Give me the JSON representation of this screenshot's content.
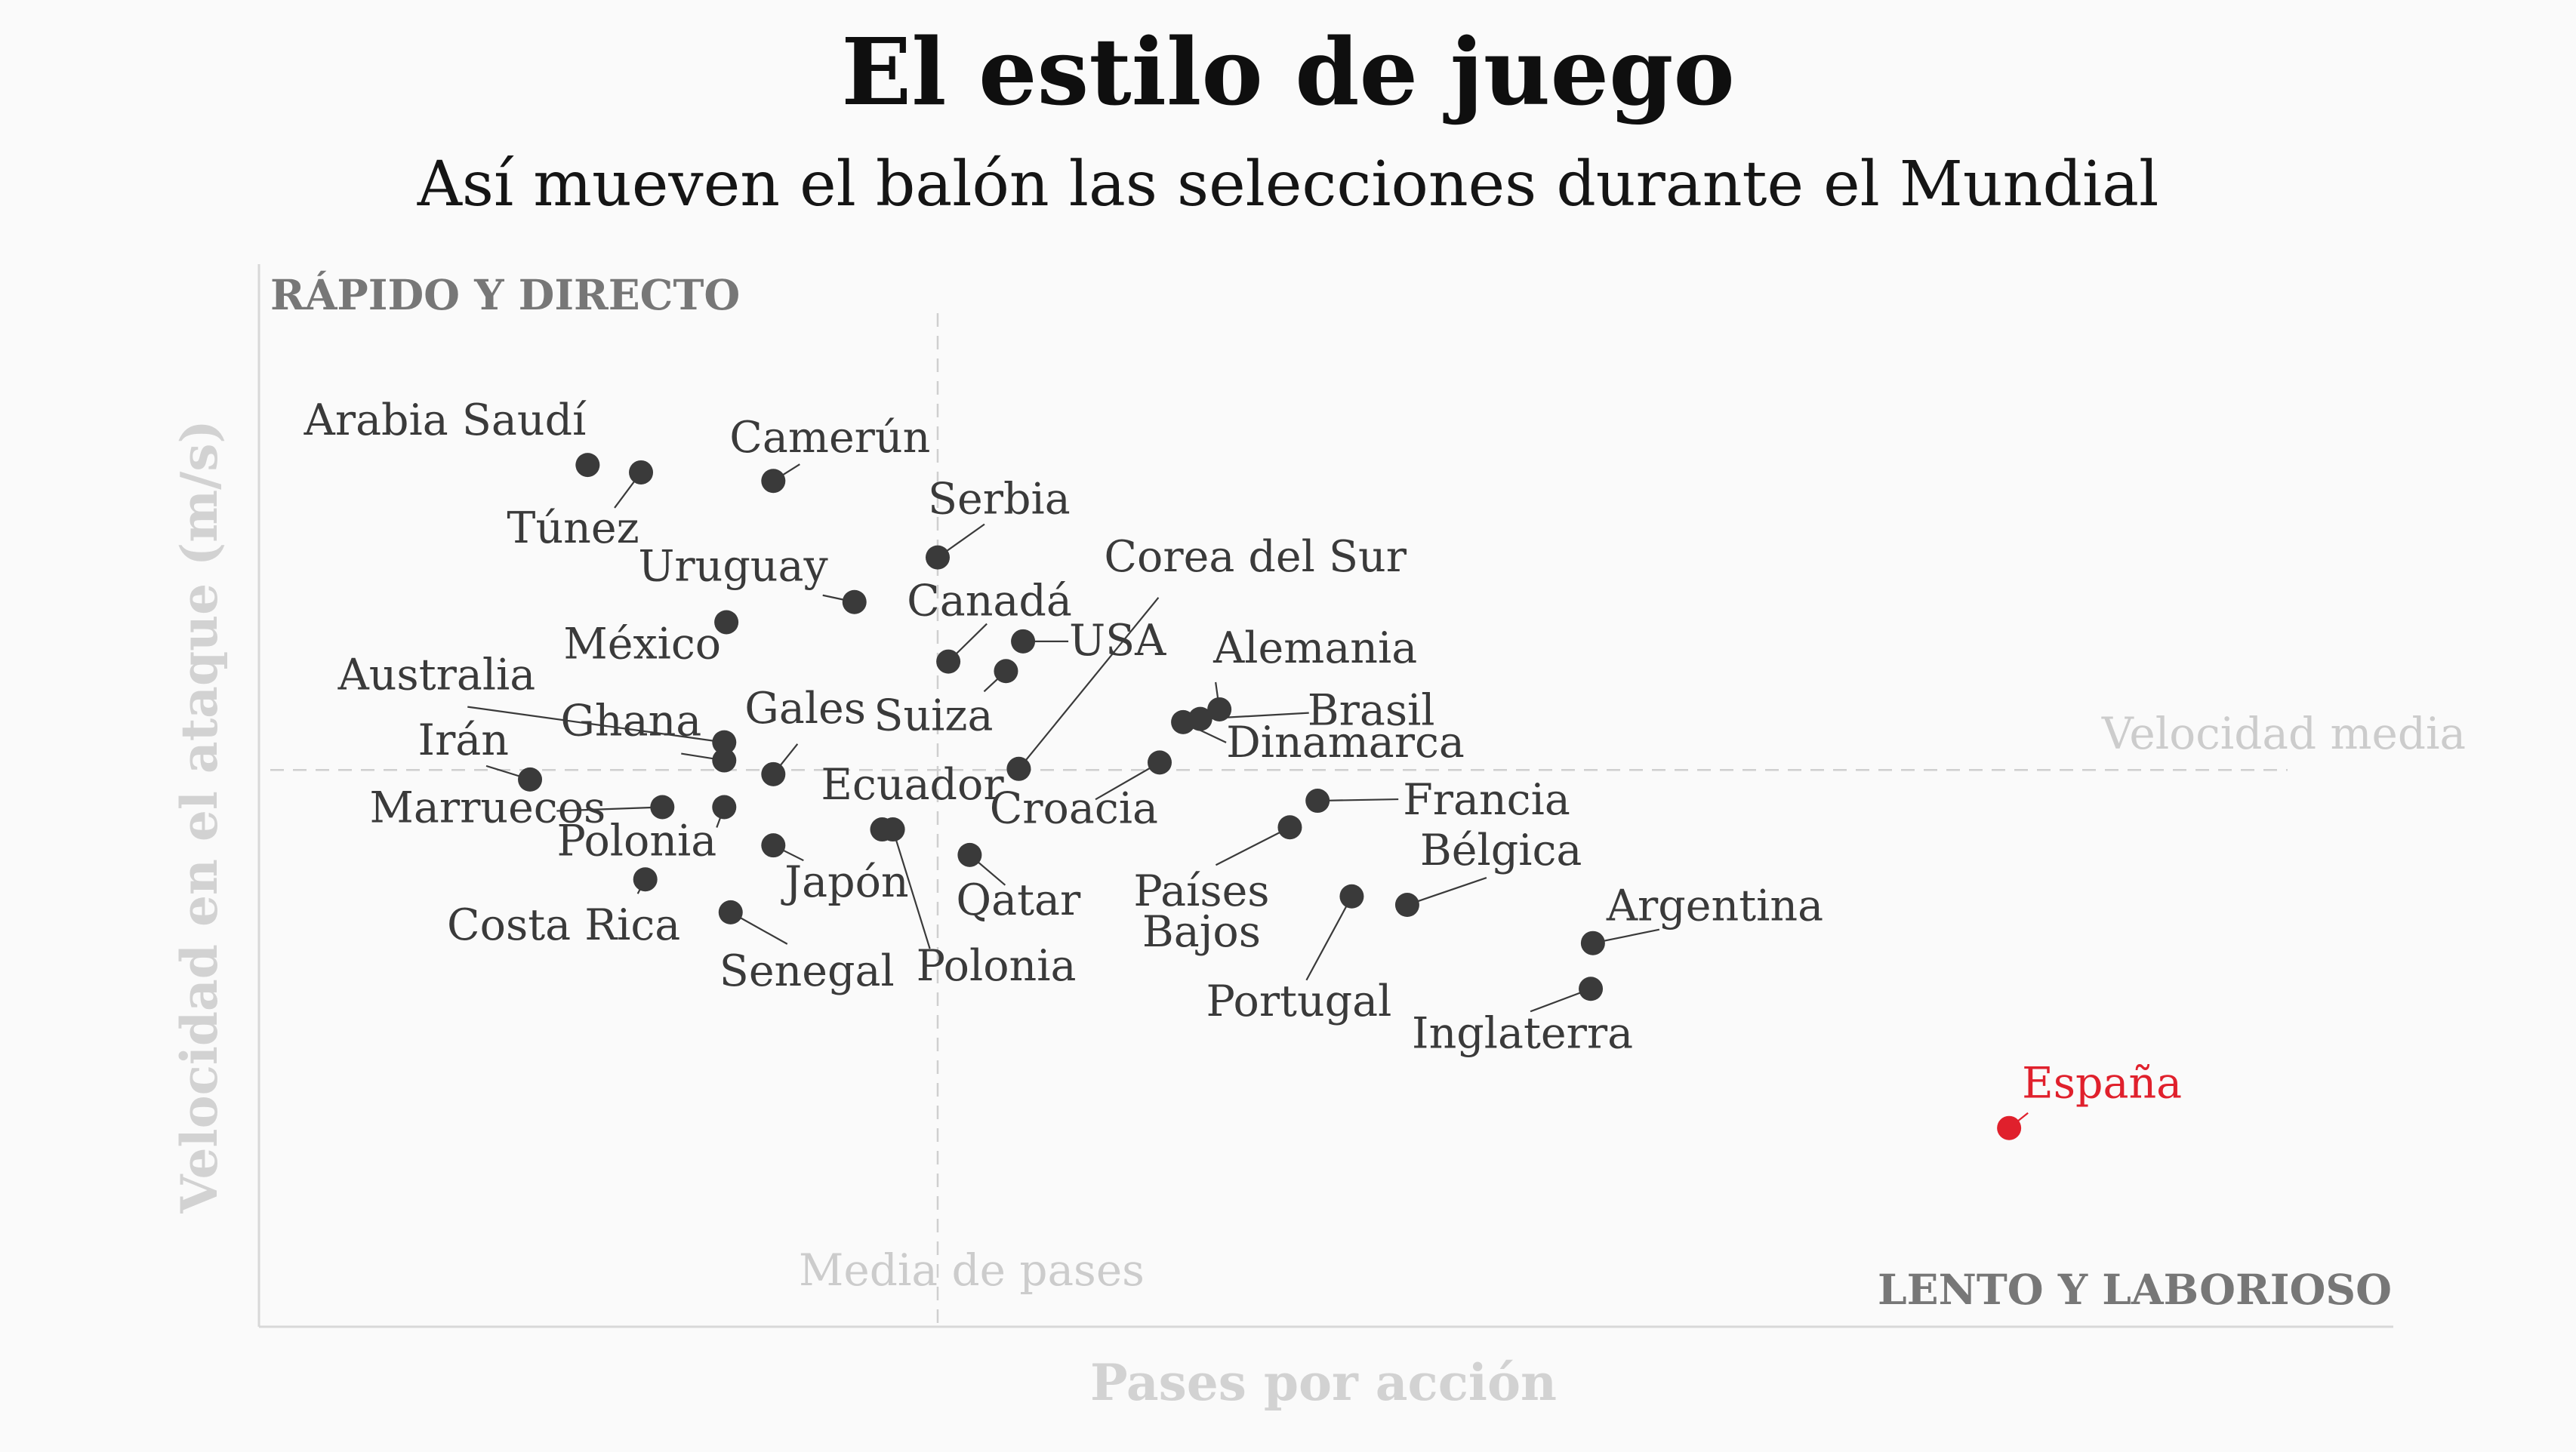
{
  "title": "El estilo de juego",
  "subtitle": "Así mueven el balón las selecciones durante el Mundial",
  "chart_data": {
    "type": "scatter",
    "xlabel": "Pases por acción",
    "ylabel": "Velocidad en el ataque (m/s)",
    "corner_labels": {
      "top_left": "RÁPIDO Y DIRECTO",
      "bottom_right": "LENTO Y LABORIOSO"
    },
    "reference_lines": {
      "x_label": "Media de pases",
      "y_label": "Velocidad media"
    },
    "xlim": [
      0,
      100
    ],
    "ylim": [
      0,
      100
    ],
    "x_mean": 31.8,
    "y_mean": 52.4,
    "grid": false,
    "highlight_color": "#e0202c",
    "point_color": "#3a3a3a",
    "points": [
      {
        "name": "Arabia Saudí",
        "x": 15.4,
        "y": 81.1
      },
      {
        "name": "Túnez",
        "x": 17.9,
        "y": 80.4
      },
      {
        "name": "Camerún",
        "x": 24.1,
        "y": 79.6
      },
      {
        "name": "Serbia",
        "x": 31.8,
        "y": 72.4
      },
      {
        "name": "Uruguay",
        "x": 27.9,
        "y": 68.2
      },
      {
        "name": "México",
        "x": 21.9,
        "y": 66.3
      },
      {
        "name": "USA",
        "x": 35.8,
        "y": 64.5
      },
      {
        "name": "Canadá",
        "x": 32.3,
        "y": 62.6
      },
      {
        "name": "Suiza",
        "x": 35.0,
        "y": 61.7
      },
      {
        "name": "Corea del Sur",
        "x": 35.6,
        "y": 52.5
      },
      {
        "name": "Alemania",
        "x": 45.0,
        "y": 58.1
      },
      {
        "name": "Brasil",
        "x": 44.1,
        "y": 57.2
      },
      {
        "name": "Dinamarca",
        "x": 43.3,
        "y": 56.9
      },
      {
        "name": "Croacia",
        "x": 42.2,
        "y": 53.1
      },
      {
        "name": "Australia",
        "x": 21.8,
        "y": 55.0
      },
      {
        "name": "Ghana",
        "x": 21.8,
        "y": 53.3
      },
      {
        "name": "Gales",
        "x": 24.1,
        "y": 52.0
      },
      {
        "name": "Irán",
        "x": 12.7,
        "y": 51.5
      },
      {
        "name": "Marruecos",
        "x": 18.9,
        "y": 48.9
      },
      {
        "name": "Polonia",
        "x": 21.8,
        "y": 48.9
      },
      {
        "name": "Japón",
        "x": 24.1,
        "y": 45.3
      },
      {
        "name": "Ecuador",
        "x": 29.2,
        "y": 46.8
      },
      {
        "name": "Polonia",
        "x": 29.7,
        "y": 46.8
      },
      {
        "name": "Qatar",
        "x": 33.3,
        "y": 44.4
      },
      {
        "name": "Costa Rica",
        "x": 18.1,
        "y": 42.1
      },
      {
        "name": "Senegal",
        "x": 22.1,
        "y": 39.0
      },
      {
        "name": "Francia",
        "x": 49.6,
        "y": 49.5
      },
      {
        "name": "Países Bajos",
        "x": 48.3,
        "y": 47.0
      },
      {
        "name": "Portugal",
        "x": 51.2,
        "y": 40.5
      },
      {
        "name": "Bélgica",
        "x": 53.8,
        "y": 39.7
      },
      {
        "name": "Argentina",
        "x": 62.5,
        "y": 36.1
      },
      {
        "name": "Inglaterra",
        "x": 62.4,
        "y": 31.8
      },
      {
        "name": "España",
        "x": 82.0,
        "y": 18.7,
        "highlight": true
      }
    ]
  }
}
